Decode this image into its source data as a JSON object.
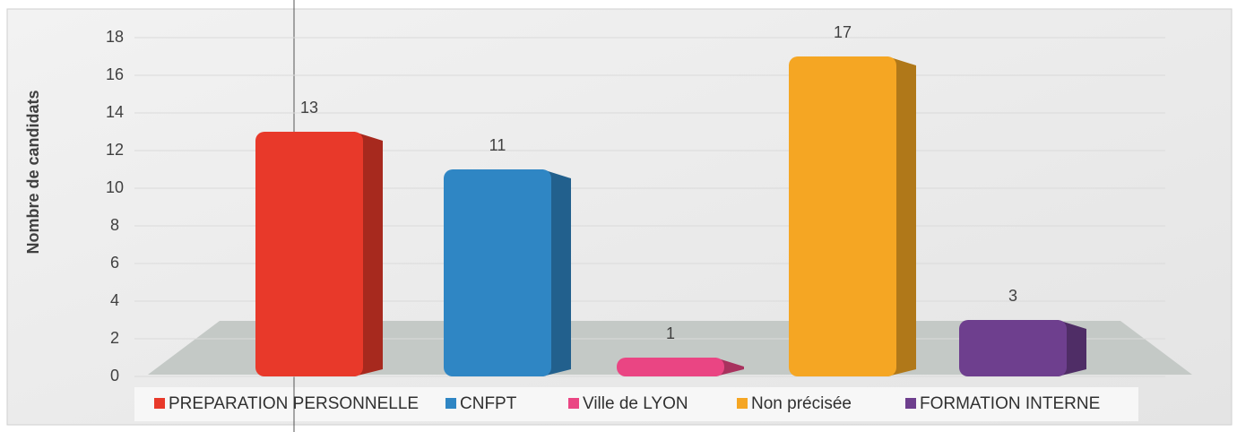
{
  "chart_data": {
    "type": "bar",
    "y_label": "Nombre de candidats",
    "categories": [
      "PREPARATION PERSONNELLE",
      "CNFPT",
      "Ville de LYON",
      "Non précisée",
      "FORMATION INTERNE"
    ],
    "values": [
      13,
      11,
      1,
      17,
      3
    ],
    "colors": [
      "#e8392a",
      "#2f86c4",
      "#ea4583",
      "#f5a623",
      "#6e3f8e"
    ],
    "ylim": [
      0,
      18
    ],
    "yticks": [
      0,
      2,
      4,
      6,
      8,
      10,
      12,
      14,
      16,
      18
    ],
    "grid": true,
    "legend": "bottom"
  }
}
